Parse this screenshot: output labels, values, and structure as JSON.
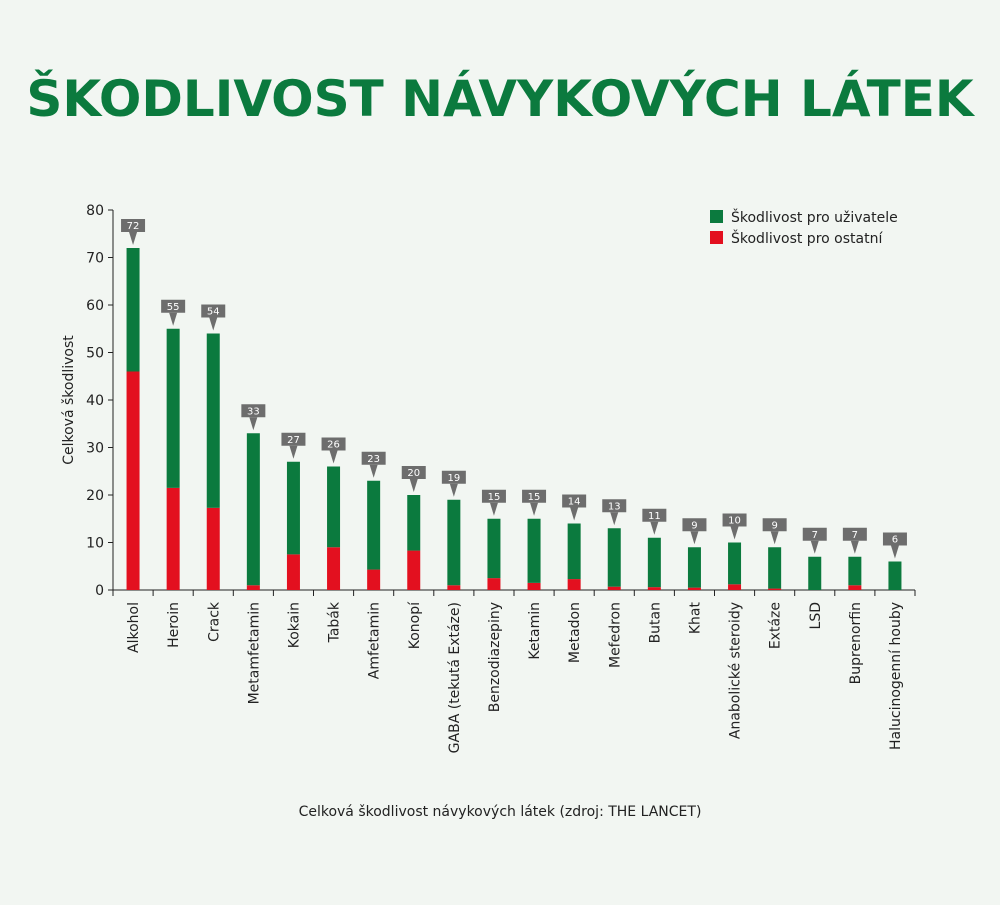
{
  "title": "ŠKODLIVOST NÁVYKOVÝCH LÁTEK",
  "caption": "Celková škodlivost návykových látek (zdroj: THE LANCET)",
  "colors": {
    "title": "#0b7a3e",
    "users": "#0b7a3e",
    "others": "#e3101f",
    "callout": "#6d6d6d",
    "background": "#f2f6f2"
  },
  "chart_data": {
    "type": "bar",
    "stacked": true,
    "ylabel": "Celková škodlivost",
    "ylim": [
      0,
      80
    ],
    "yticks": [
      0,
      10,
      20,
      30,
      40,
      50,
      60,
      70,
      80
    ],
    "legend_position": "top-right",
    "categories": [
      "Alkohol",
      "Heroin",
      "Crack",
      "Metamfetamin",
      "Kokain",
      "Tabák",
      "Amfetamin",
      "Konopí",
      "GABA (tekutá Extáze)",
      "Benzodiazepiny",
      "Ketamin",
      "Metadon",
      "Mefedron",
      "Butan",
      "Khat",
      "Anabolické steroidy",
      "Extáze",
      "LSD",
      "Buprenorfin",
      "Halucinogenní houby"
    ],
    "totals": [
      72,
      55,
      54,
      33,
      27,
      26,
      23,
      20,
      19,
      15,
      15,
      14,
      13,
      11,
      9,
      10,
      9,
      7,
      7,
      6
    ],
    "series": [
      {
        "name": "Škodlivost pro ostatní",
        "values": [
          46,
          21.5,
          17.3,
          1.0,
          7.5,
          9.0,
          4.3,
          8.3,
          1.0,
          2.5,
          1.5,
          2.3,
          0.7,
          0.6,
          0.5,
          1.2,
          0.3,
          0,
          1.0,
          0
        ]
      },
      {
        "name": "Škodlivost pro uživatele",
        "values": [
          26,
          33.5,
          36.7,
          32.0,
          19.5,
          17.0,
          18.7,
          11.7,
          18.0,
          12.5,
          13.5,
          11.7,
          12.3,
          10.4,
          8.5,
          8.8,
          8.7,
          7,
          6.0,
          6
        ]
      }
    ],
    "legend": [
      {
        "label": "Škodlivost pro uživatele",
        "color": "#0b7a3e"
      },
      {
        "label": "Škodlivost pro ostatní",
        "color": "#e3101f"
      }
    ]
  }
}
